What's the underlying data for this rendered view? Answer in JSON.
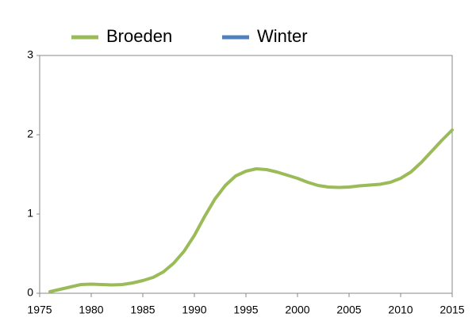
{
  "chart_data": {
    "type": "line",
    "x": [
      1976,
      1977,
      1978,
      1979,
      1980,
      1981,
      1982,
      1983,
      1984,
      1985,
      1986,
      1987,
      1988,
      1989,
      1990,
      1991,
      1992,
      1993,
      1994,
      1995,
      1996,
      1997,
      1998,
      1999,
      2000,
      2001,
      2002,
      2003,
      2004,
      2005,
      2006,
      2007,
      2008,
      2009,
      2010,
      2011,
      2012,
      2013,
      2014,
      2015
    ],
    "series": [
      {
        "name": "Broeden",
        "color": "#9bbb59",
        "values": [
          0.02,
          0.05,
          0.08,
          0.11,
          0.115,
          0.11,
          0.105,
          0.11,
          0.13,
          0.16,
          0.2,
          0.27,
          0.38,
          0.53,
          0.73,
          0.97,
          1.19,
          1.36,
          1.48,
          1.54,
          1.57,
          1.56,
          1.53,
          1.49,
          1.45,
          1.4,
          1.36,
          1.34,
          1.335,
          1.34,
          1.355,
          1.365,
          1.375,
          1.4,
          1.45,
          1.53,
          1.65,
          1.79,
          1.93,
          2.06
        ]
      },
      {
        "name": "Winter",
        "color": "#4f81bd",
        "values": [
          null,
          null,
          null,
          null,
          null,
          null,
          null,
          null,
          null,
          null,
          null,
          null,
          null,
          null,
          null,
          null,
          null,
          null,
          null,
          null,
          null,
          null,
          null,
          null,
          null,
          null,
          null,
          null,
          null,
          null,
          null,
          null,
          null,
          null,
          null,
          null,
          null,
          null,
          null,
          null
        ]
      }
    ],
    "xlim": [
      1975,
      2015
    ],
    "xticks": [
      1975,
      1980,
      1985,
      1990,
      1995,
      2000,
      2005,
      2010,
      2015
    ],
    "ylim": [
      0,
      3
    ],
    "yticks": [
      0,
      1,
      2,
      3
    ],
    "grid": false
  }
}
